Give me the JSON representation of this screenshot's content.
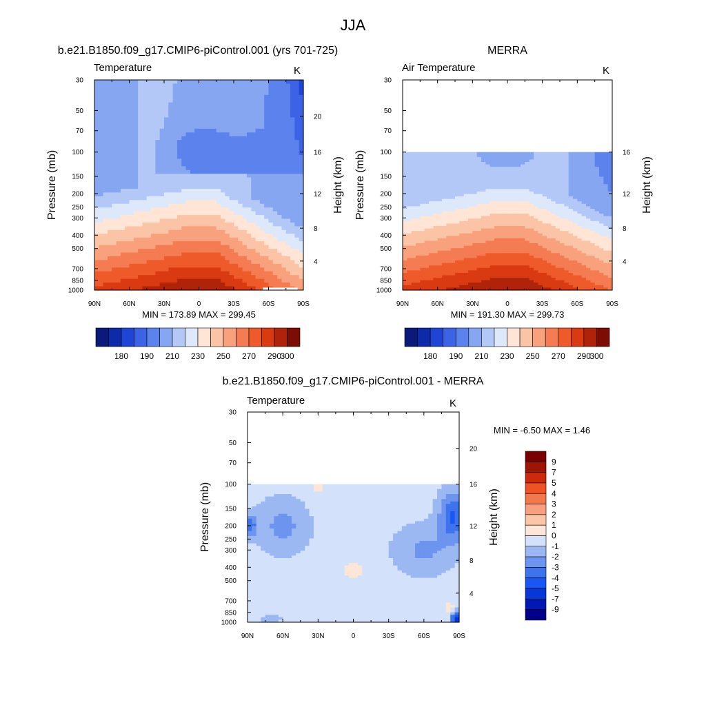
{
  "page_title": "JJA",
  "colors": {
    "temp_palette": [
      "#0a1a7a",
      "#0d2aa8",
      "#1f45d6",
      "#3c63e6",
      "#5c82ee",
      "#86a6f2",
      "#b3c8f7",
      "#dde8fb",
      "#ffe5d6",
      "#fcc4a6",
      "#f9a07c",
      "#f47b52",
      "#ee5a2a",
      "#d93a12",
      "#b0220a",
      "#7d0c04"
    ],
    "diff_palette": [
      "#00008a",
      "#0019b0",
      "#0537d9",
      "#1a55f5",
      "#3d74ee",
      "#6d94ee",
      "#9cb8f3",
      "#d3e2fa",
      "#fde6d7",
      "#fbc6a8",
      "#f8a07e",
      "#f47849",
      "#ef5224",
      "#cc2b0a",
      "#9e1504",
      "#7a0000"
    ]
  },
  "chart_data": [
    {
      "type": "heatmap",
      "title": "b.e21.B1850.f09_g17.CMIP6-piControl.001 (yrs 701-725)",
      "subtitle_left": "Temperature",
      "subtitle_right": "K",
      "ylabel": "Pressure (mb)",
      "ylabel_right": "Height (km)",
      "x_ticks": [
        "90N",
        "60N",
        "30N",
        "0",
        "30S",
        "60S",
        "90S"
      ],
      "x_range": [
        90,
        -90
      ],
      "y_ticks": [
        "30",
        "50",
        "70",
        "100",
        "150",
        "200",
        "250",
        "300",
        "400",
        "500",
        "700",
        "850",
        "1000"
      ],
      "y_range": [
        1000,
        30
      ],
      "y_scale": "log",
      "height_ticks": [
        "20",
        "16",
        "12",
        "8",
        "4"
      ],
      "levels": [
        175,
        180,
        185,
        190,
        200,
        210,
        220,
        230,
        240,
        250,
        260,
        270,
        280,
        290,
        300
      ],
      "min_max_text": "MIN = 173.89  MAX = 299.45",
      "colorbar_labels": [
        "180",
        "190",
        "210",
        "230",
        "250",
        "270",
        "290",
        "300"
      ]
    },
    {
      "type": "heatmap",
      "title": "MERRA",
      "subtitle_left": "Air Temperature",
      "subtitle_right": "K",
      "ylabel": "Pressure (mb)",
      "ylabel_right": "Height (km)",
      "x_ticks": [
        "90N",
        "60N",
        "30N",
        "0",
        "30S",
        "60S",
        "90S"
      ],
      "x_range": [
        90,
        -90
      ],
      "y_ticks": [
        "30",
        "50",
        "70",
        "100",
        "150",
        "200",
        "250",
        "300",
        "400",
        "500",
        "700",
        "850",
        "1000"
      ],
      "y_range": [
        1000,
        30
      ],
      "y_scale": "log",
      "height_ticks": [
        "16",
        "12",
        "8",
        "4"
      ],
      "levels": [
        175,
        180,
        185,
        190,
        200,
        210,
        220,
        230,
        240,
        250,
        260,
        270,
        280,
        290,
        300
      ],
      "min_max_text": "MIN = 191.30  MAX = 299.73",
      "colorbar_labels": [
        "180",
        "190",
        "210",
        "230",
        "250",
        "270",
        "290",
        "300"
      ]
    },
    {
      "type": "heatmap",
      "title": "b.e21.B1850.f09_g17.CMIP6-piControl.001 - MERRA",
      "subtitle_left": "Temperature",
      "subtitle_right": "K",
      "ylabel": "Pressure (mb)",
      "ylabel_right": "Height (km)",
      "x_ticks": [
        "90N",
        "60N",
        "30N",
        "0",
        "30S",
        "60S",
        "90S"
      ],
      "x_range": [
        90,
        -90
      ],
      "y_ticks": [
        "30",
        "50",
        "70",
        "100",
        "150",
        "200",
        "250",
        "300",
        "400",
        "500",
        "700",
        "850",
        "1000"
      ],
      "y_range": [
        1000,
        30
      ],
      "y_scale": "log",
      "height_ticks": [
        "20",
        "16",
        "12",
        "8",
        "4"
      ],
      "min_max_text": "MIN =  -6.50  MAX =   1.46",
      "levels": [
        -9,
        -7,
        -5,
        -4,
        -3,
        -2,
        -1,
        0,
        1,
        2,
        3,
        4,
        5,
        7,
        9
      ],
      "colorbar_labels": [
        "9",
        "7",
        "5",
        "4",
        "3",
        "2",
        "1",
        "0",
        "-1",
        "-2",
        "-3",
        "-4",
        "-5",
        "-7",
        "-9"
      ]
    }
  ]
}
